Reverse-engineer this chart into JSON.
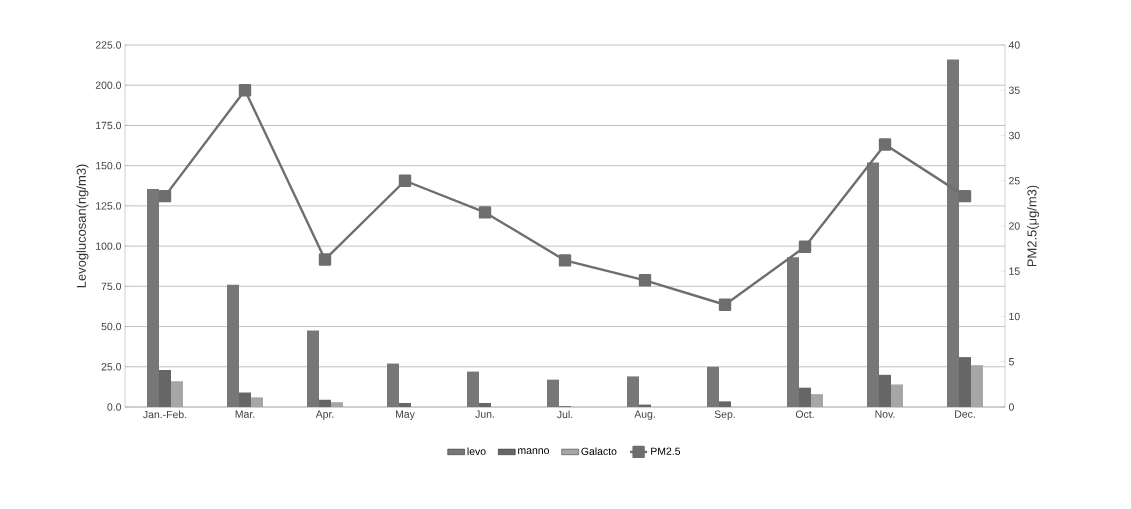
{
  "chart_data": {
    "type": "bar",
    "categories": [
      "Jan.-Feb.",
      "Mar.",
      "Apr.",
      "May",
      "Jun.",
      "Jul.",
      "Aug.",
      "Sep.",
      "Oct.",
      "Nov.",
      "Dec."
    ],
    "series": [
      {
        "name": "levo",
        "color": "#777777",
        "values": [
          135.5,
          76,
          47.5,
          27,
          22,
          17,
          19,
          25,
          93,
          152,
          216
        ]
      },
      {
        "name": "manno",
        "color": "#666666",
        "values": [
          23,
          9,
          4.5,
          2.5,
          2.5,
          0.5,
          1.5,
          3.5,
          12,
          20,
          31
        ]
      },
      {
        "name": "Galacto",
        "color": "#a6a6a6",
        "values": [
          16,
          6,
          3,
          0,
          0,
          0,
          0,
          null,
          8,
          14,
          26
        ]
      },
      {
        "name": "PM2.5",
        "color": "#6e6e6e",
        "type": "line",
        "axis": "y2",
        "marker": "square",
        "values": [
          23.3,
          35,
          16.3,
          25,
          21.5,
          16.2,
          14,
          11.3,
          17.7,
          29,
          23.3
        ]
      }
    ],
    "ylabel": "Levoglucosan(ng/m3)",
    "y2label": "PM2.5(μg/m3)",
    "ylim": [
      0,
      225
    ],
    "yticks": [
      {
        "value": 0,
        "label": "0.0"
      },
      {
        "value": 25,
        "label": "25.0"
      },
      {
        "value": 50,
        "label": "50.0"
      },
      {
        "value": 75,
        "label": "75.0"
      },
      {
        "value": 100,
        "label": "100.0"
      },
      {
        "value": 125,
        "label": "125.0"
      },
      {
        "value": 150,
        "label": "150.0"
      },
      {
        "value": 175,
        "label": "175.0"
      },
      {
        "value": 200,
        "label": "200.0"
      },
      {
        "value": 225,
        "label": "225.0"
      }
    ],
    "y2lim": [
      0,
      40
    ],
    "y2ticks": [
      0,
      5,
      10,
      15,
      20,
      25,
      30,
      35,
      40
    ],
    "grid": "y",
    "legend": "bottom"
  }
}
